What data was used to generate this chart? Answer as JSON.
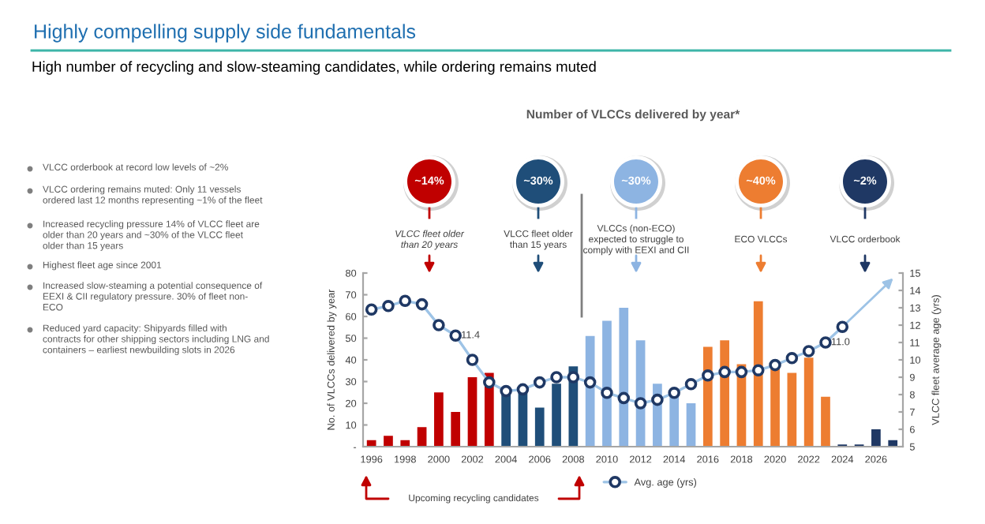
{
  "chart_data": {
    "type": "bar",
    "title": "Highly compelling supply side fundamentals",
    "subtitle": "High number of recycling and slow-steaming candidates, while ordering remains muted",
    "ylabel": "No. of VLCCs delivered by year",
    "y2label": "VLCC fleet average age (yrs)",
    "x": [
      1996,
      1997,
      1998,
      1999,
      2000,
      2001,
      2002,
      2003,
      2004,
      2005,
      2006,
      2007,
      2008,
      2009,
      2010,
      2011,
      2012,
      2013,
      2014,
      2015,
      2016,
      2017,
      2018,
      2019,
      2020,
      2021,
      2022,
      2023,
      2024,
      2025,
      2026,
      2027
    ],
    "xlim": [
      1995.5,
      2027.6
    ],
    "xticks": [
      1996,
      1998,
      2000,
      2002,
      2004,
      2006,
      2008,
      2010,
      2012,
      2014,
      2016,
      2018,
      2020,
      2022,
      2024,
      2026
    ],
    "ylim": [
      0,
      80
    ],
    "yticks": [
      {
        "value": 0,
        "label": "-"
      },
      10,
      20,
      30,
      40,
      50,
      60,
      70,
      80
    ],
    "y2lim": [
      5,
      15
    ],
    "y2ticks": [
      5,
      6,
      7,
      8,
      9,
      10,
      11,
      12,
      13,
      14,
      15
    ],
    "series": [
      {
        "values": [
          3,
          5,
          3,
          9,
          25,
          16,
          32,
          34,
          26,
          26,
          18,
          29,
          37,
          51,
          58,
          64,
          49,
          29,
          24,
          20,
          46,
          49,
          38,
          67,
          37,
          34,
          41,
          23,
          1,
          1,
          8,
          3
        ],
        "colors": [
          "#c00000",
          "#c00000",
          "#c00000",
          "#c00000",
          "#c00000",
          "#c00000",
          "#c00000",
          "#c00000",
          "#1f4e79",
          "#1f4e79",
          "#1f4e79",
          "#1f4e79",
          "#1f4e79",
          "#8db4e2",
          "#8db4e2",
          "#8db4e2",
          "#8db4e2",
          "#8db4e2",
          "#8db4e2",
          "#8db4e2",
          "#ed7d31",
          "#ed7d31",
          "#ed7d31",
          "#ed7d31",
          "#ed7d31",
          "#ed7d31",
          "#ed7d31",
          "#ed7d31",
          "#1f3864",
          "#1f3864",
          "#1f3864",
          "#1f3864"
        ]
      },
      {
        "name": "Avg. age (yrs)",
        "type": "line",
        "axis": "y2",
        "color": "#9dc3e6",
        "marker": "circle",
        "x": [
          1996,
          1997,
          1998,
          1999,
          2000,
          2001,
          2002,
          2003,
          2004,
          2005,
          2006,
          2007,
          2008,
          2009,
          2010,
          2011,
          2012,
          2013,
          2014,
          2015,
          2016,
          2017,
          2018,
          2019,
          2020,
          2021,
          2022,
          2023,
          2024
        ],
        "values": [
          12.9,
          13.1,
          13.4,
          13.2,
          12.0,
          11.4,
          10.0,
          8.7,
          8.2,
          8.3,
          8.7,
          9.0,
          9.0,
          8.7,
          8.1,
          7.8,
          7.5,
          7.7,
          8.1,
          8.6,
          9.1,
          9.3,
          9.3,
          9.4,
          9.7,
          10.1,
          10.5,
          11.0,
          11.9
        ],
        "value_labels": [
          null,
          null,
          null,
          null,
          null,
          "11.4",
          null,
          null,
          null,
          null,
          null,
          null,
          null,
          null,
          null,
          null,
          null,
          null,
          null,
          null,
          null,
          null,
          null,
          null,
          null,
          null,
          null,
          "11.0",
          null
        ]
      }
    ],
    "ref_lines": [
      {
        "axis": "x",
        "value": 2008.5,
        "color": "#7f7f7f"
      }
    ],
    "legend": "bottom",
    "grid": false,
    "annotations": [
      "Number of VLCCs delivered by year*",
      "VLCC orderbook at record low levels of ~2%",
      "VLCC ordering remains muted: Only 11 vessels\nordered last 12 months representing ~1% of the fleet",
      "Increased recycling pressure 14% of VLCC fleet are\nolder than 20 years and ~30% of the VLCC fleet\nolder than 15 years",
      "Highest fleet age since 2001",
      "Increased slow-steaming a potential consequence of\nEEXI & CII regulatory pressure. 30% of fleet non-\nECO",
      "Reduced yard capacity: Shipyards filled with\ncontracts for other shipping sectors including LNG and\ncontainers – earliest newbuilding slots in 2026",
      "~14%",
      "~30%",
      "~30%",
      "~40%",
      "~2%",
      "VLCC fleet older\nthan 20 years",
      "VLCC fleet older\nthan 15 years",
      "VLCCs (non-ECO)\nexpected to struggle to\ncomply with EEXI and CII",
      "ECO VLCCs",
      "VLCC orderbook",
      "Upcoming recycling candidates"
    ]
  }
}
